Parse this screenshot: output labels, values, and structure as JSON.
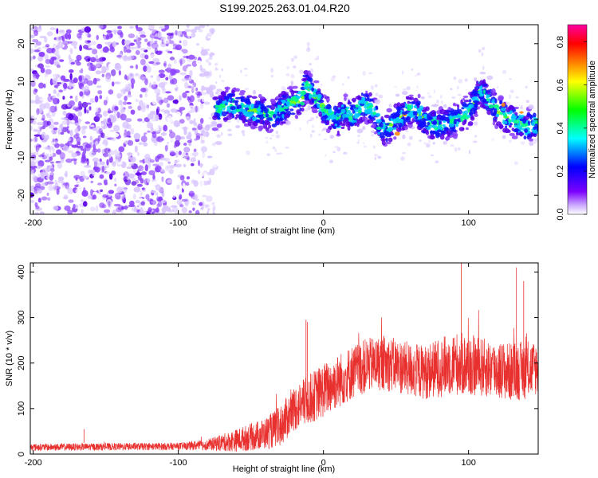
{
  "title": "S199.2025.263.01.04.R20",
  "chart_data": [
    {
      "type": "heatmap",
      "xlabel": "Height of straight line (km)",
      "ylabel": "Frequency (Hz)",
      "xlim": [
        -202,
        148
      ],
      "ylim": [
        -25,
        25
      ],
      "xticks": [
        -200,
        -100,
        0,
        100
      ],
      "yticks": [
        -20,
        -10,
        0,
        10,
        20
      ],
      "ridge": {
        "x": [
          -75,
          -65,
          -55,
          -45,
          -35,
          -25,
          -15,
          -12,
          -5,
          0,
          5,
          10,
          15,
          20,
          25,
          30,
          35,
          40,
          45,
          50,
          55,
          60,
          65,
          70,
          75,
          80,
          85,
          90,
          95,
          100,
          105,
          108,
          112,
          118,
          125,
          130,
          135,
          140,
          145
        ],
        "y": [
          2,
          4,
          3,
          2,
          1,
          4,
          5,
          9,
          6,
          3,
          1,
          0,
          2,
          1,
          3,
          4,
          2,
          -3,
          -2,
          0,
          1,
          3,
          2,
          0,
          -1,
          -2,
          -1,
          0,
          1,
          2,
          5,
          8,
          6,
          3,
          1,
          0,
          -1,
          -2,
          -1
        ]
      },
      "noise_region_x": [
        -202,
        -75
      ],
      "colorbar": {
        "label": "Normalized spectral amplitude",
        "range": [
          0.0,
          0.88
        ],
        "ticks": [
          "0.0",
          "0.2",
          "0.4",
          "0.6",
          "0.8"
        ],
        "tick_values": [
          0.0,
          0.2,
          0.4,
          0.6,
          0.8
        ],
        "colors": [
          "#ffffff",
          "#7b00ff",
          "#0000ff",
          "#00ffff",
          "#00ff00",
          "#ffff00",
          "#ff8000",
          "#ff0000",
          "#ff00a0"
        ]
      }
    },
    {
      "type": "line",
      "xlabel": "Height of straight line (km)",
      "ylabel": "SNR (10 * v/v)",
      "xlim": [
        -202,
        148
      ],
      "ylim": [
        0,
        420
      ],
      "xticks": [
        -200,
        -100,
        0,
        100
      ],
      "yticks": [
        0,
        100,
        200,
        300,
        400
      ],
      "color": "#e8312f",
      "envelope": {
        "x": [
          -202,
          -150,
          -100,
          -80,
          -60,
          -40,
          -30,
          -20,
          -10,
          0,
          10,
          20,
          30,
          40,
          50,
          60,
          70,
          80,
          90,
          100,
          110,
          120,
          130,
          140,
          148
        ],
        "mean": [
          15,
          16,
          17,
          20,
          30,
          45,
          60,
          100,
          120,
          140,
          160,
          180,
          195,
          200,
          195,
          185,
          180,
          190,
          200,
          195,
          190,
          185,
          180,
          185,
          190
        ],
        "spread": [
          8,
          8,
          8,
          12,
          25,
          35,
          45,
          50,
          55,
          60,
          60,
          60,
          60,
          60,
          60,
          60,
          60,
          65,
          70,
          70,
          65,
          65,
          65,
          65,
          60
        ]
      },
      "peaks": [
        {
          "x": -165,
          "y": 55
        },
        {
          "x": -12,
          "y": 295
        },
        {
          "x": -11,
          "y": 290
        },
        {
          "x": 95,
          "y": 420
        },
        {
          "x": 133,
          "y": 410
        },
        {
          "x": 138,
          "y": 380
        }
      ]
    }
  ]
}
